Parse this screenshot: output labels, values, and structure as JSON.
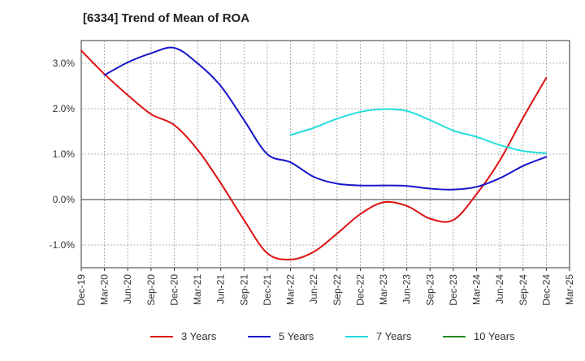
{
  "chart_data": {
    "type": "line",
    "title": "[6334]  Trend of Mean of ROA",
    "xlabel": "",
    "ylabel": "",
    "x_ticks": [
      "Dec-19",
      "Mar-20",
      "Jun-20",
      "Sep-20",
      "Dec-20",
      "Mar-21",
      "Jun-21",
      "Sep-21",
      "Dec-21",
      "Mar-22",
      "Jun-22",
      "Sep-22",
      "Dec-22",
      "Mar-23",
      "Jun-23",
      "Sep-23",
      "Dec-23",
      "Mar-24",
      "Jun-24",
      "Sep-24",
      "Dec-24",
      "Mar-25"
    ],
    "y_ticks": [
      "3.0%",
      "2.0%",
      "1.0%",
      "0.0%",
      "-1.0%"
    ],
    "y_tick_values": [
      3.0,
      2.0,
      1.0,
      0.0,
      -1.0
    ],
    "ylim": [
      -1.5,
      3.5
    ],
    "grid": true,
    "legend_position": "bottom",
    "series": [
      {
        "name": "3 Years",
        "color": "#dd1111",
        "points": [
          [
            "Dec-19",
            3.28
          ],
          [
            "Mar-20",
            2.76
          ],
          [
            "Jun-20",
            2.3
          ],
          [
            "Sep-20",
            1.88
          ],
          [
            "Dec-20",
            1.64
          ],
          [
            "Mar-21",
            1.1
          ],
          [
            "Jun-21",
            0.36
          ],
          [
            "Sep-21",
            -0.45
          ],
          [
            "Dec-21",
            -1.18
          ],
          [
            "Mar-22",
            -1.32
          ],
          [
            "Jun-22",
            -1.15
          ],
          [
            "Sep-22",
            -0.75
          ],
          [
            "Dec-22",
            -0.32
          ],
          [
            "Mar-23",
            -0.06
          ],
          [
            "Jun-23",
            -0.14
          ],
          [
            "Sep-23",
            -0.42
          ],
          [
            "Dec-23",
            -0.45
          ],
          [
            "Mar-24",
            0.12
          ],
          [
            "Jun-24",
            0.86
          ],
          [
            "Sep-24",
            1.8
          ],
          [
            "Dec-24",
            2.68
          ]
        ]
      },
      {
        "name": "5 Years",
        "color": "#1515cc",
        "points": [
          [
            "Mar-20",
            2.74
          ],
          [
            "Jun-20",
            3.02
          ],
          [
            "Sep-20",
            3.22
          ],
          [
            "Dec-20",
            3.34
          ],
          [
            "Mar-21",
            3.0
          ],
          [
            "Jun-21",
            2.5
          ],
          [
            "Sep-21",
            1.75
          ],
          [
            "Dec-21",
            1.0
          ],
          [
            "Mar-22",
            0.82
          ],
          [
            "Jun-22",
            0.5
          ],
          [
            "Sep-22",
            0.35
          ],
          [
            "Dec-22",
            0.31
          ],
          [
            "Mar-23",
            0.31
          ],
          [
            "Jun-23",
            0.3
          ],
          [
            "Sep-23",
            0.24
          ],
          [
            "Dec-23",
            0.22
          ],
          [
            "Mar-24",
            0.28
          ],
          [
            "Jun-24",
            0.47
          ],
          [
            "Sep-24",
            0.74
          ],
          [
            "Dec-24",
            0.94
          ]
        ]
      },
      {
        "name": "7 Years",
        "color": "#22dddd",
        "points": [
          [
            "Mar-22",
            1.42
          ],
          [
            "Jun-22",
            1.58
          ],
          [
            "Sep-22",
            1.78
          ],
          [
            "Dec-22",
            1.93
          ],
          [
            "Mar-23",
            1.99
          ],
          [
            "Jun-23",
            1.95
          ],
          [
            "Sep-23",
            1.75
          ],
          [
            "Dec-23",
            1.52
          ],
          [
            "Mar-24",
            1.38
          ],
          [
            "Jun-24",
            1.2
          ],
          [
            "Sep-24",
            1.07
          ],
          [
            "Dec-24",
            1.02
          ]
        ]
      },
      {
        "name": "10 Years",
        "color": "#228822",
        "points": []
      }
    ]
  }
}
